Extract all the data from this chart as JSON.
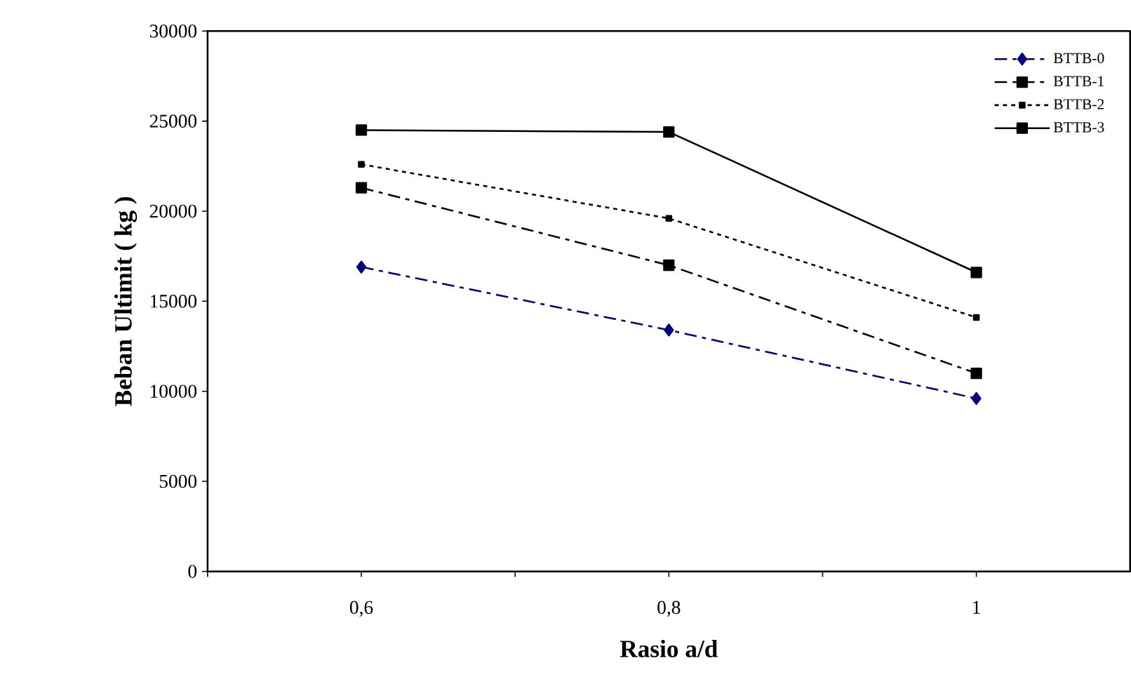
{
  "chart_data": {
    "type": "line",
    "xlabel": "Rasio a/d",
    "ylabel": "Beban Ultimit ( kg )",
    "x": [
      0.6,
      0.8,
      1.0
    ],
    "series": [
      {
        "name": "BTTB-0",
        "color": "#000080",
        "marker": "diamond",
        "line_style": "dashed",
        "values": [
          16900,
          13400,
          9600
        ]
      },
      {
        "name": "BTTB-1",
        "color": "#000000",
        "marker": "square",
        "line_style": "dashed",
        "values": [
          21300,
          17000,
          11000
        ]
      },
      {
        "name": "BTTB-2",
        "color": "#000000",
        "marker": "square",
        "line_style": "dotted",
        "values": [
          22600,
          19600,
          14100
        ]
      },
      {
        "name": "BTTB-3",
        "color": "#000000",
        "marker": "square",
        "line_style": "solid",
        "values": [
          24500,
          24400,
          16600
        ]
      }
    ],
    "xlim": [
      0.5,
      1.1
    ],
    "xticks": [
      {
        "value": 0.5,
        "label": null
      },
      {
        "value": 0.6,
        "label": "0,6"
      },
      {
        "value": 0.7,
        "label": null
      },
      {
        "value": 0.8,
        "label": "0,8"
      },
      {
        "value": 0.9,
        "label": null
      },
      {
        "value": 1.0,
        "label": "1"
      }
    ],
    "ylim": [
      0,
      30000
    ],
    "yticks": [
      0,
      5000,
      10000,
      15000,
      20000,
      25000,
      30000
    ],
    "legend": "top right",
    "grid": false
  }
}
